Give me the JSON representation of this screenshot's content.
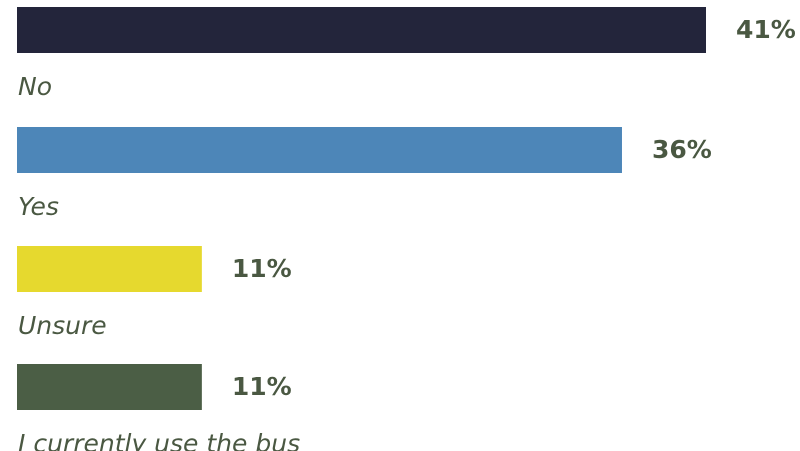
{
  "chart_data": {
    "type": "bar",
    "orientation": "horizontal",
    "categories": [
      "No",
      "Yes",
      "Unsure",
      "I currently use the bus"
    ],
    "values": [
      41,
      36,
      11,
      11
    ],
    "value_labels": [
      "41%",
      "36%",
      "11%",
      "11%"
    ],
    "colors": [
      "#23253b",
      "#4d86b8",
      "#e6d92e",
      "#4b5e45"
    ],
    "xlim": [
      0,
      41
    ],
    "grid": false,
    "legend": "none"
  }
}
